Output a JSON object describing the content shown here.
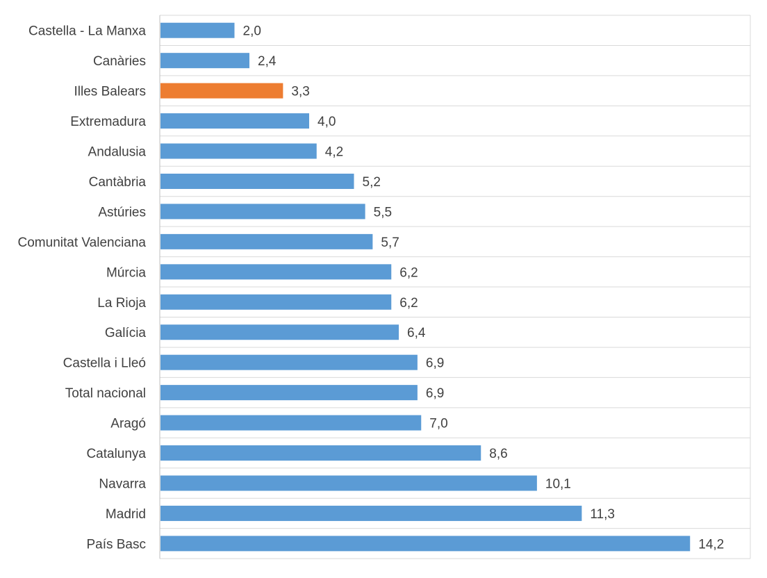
{
  "chart_data": {
    "type": "bar",
    "orientation": "horizontal",
    "categories": [
      "Castella - La Manxa",
      "Canàries",
      "Illes Balears",
      "Extremadura",
      "Andalusia",
      "Cantàbria",
      "Astúries",
      "Comunitat Valenciana",
      "Múrcia",
      "La Rioja",
      "Galícia",
      "Castella i Lleó",
      "Total nacional",
      "Aragó",
      "Catalunya",
      "Navarra",
      "Madrid",
      "País Basc"
    ],
    "values": [
      2.0,
      2.4,
      3.3,
      4.0,
      4.2,
      5.2,
      5.5,
      5.7,
      6.2,
      6.2,
      6.4,
      6.9,
      6.9,
      7.0,
      8.6,
      10.1,
      11.3,
      14.2
    ],
    "data_labels": [
      "2,0",
      "2,4",
      "3,3",
      "4,0",
      "4,2",
      "5,2",
      "5,5",
      "5,7",
      "6,2",
      "6,2",
      "6,4",
      "6,9",
      "6,9",
      "7,0",
      "8,6",
      "10,1",
      "11,3",
      "14,2"
    ],
    "highlight_category": "Illes Balears",
    "xlim": [
      0,
      16
    ],
    "grid": true,
    "legend": "none",
    "title": "",
    "xlabel": "",
    "ylabel": ""
  },
  "colors": {
    "bar": "#5B9BD5",
    "highlight": "#ED7D31",
    "grid": "#D9D9D9",
    "axis": "#BFBFBF",
    "text": "#404040"
  }
}
